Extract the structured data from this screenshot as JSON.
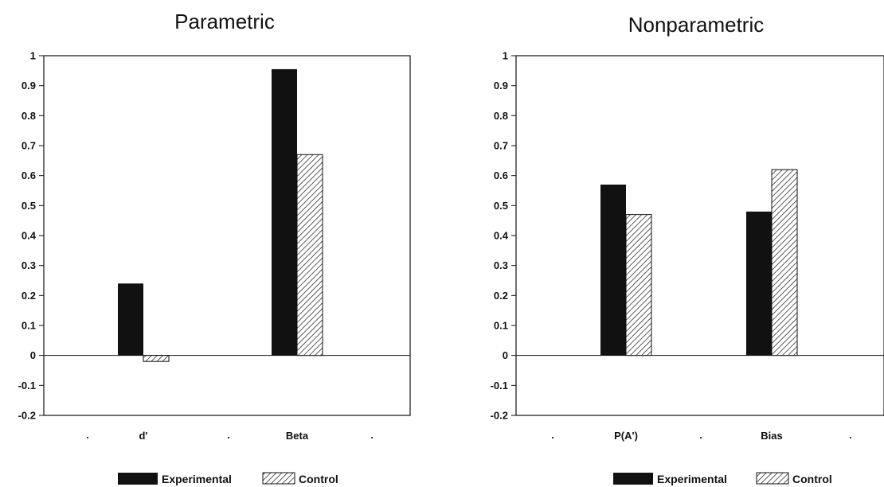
{
  "chart_data": [
    {
      "type": "bar",
      "title": "Parametric",
      "categories": [
        "d'",
        "Beta"
      ],
      "series": [
        {
          "name": "Experimental",
          "values": [
            0.24,
            0.955
          ]
        },
        {
          "name": "Control",
          "values": [
            -0.02,
            0.67
          ]
        }
      ],
      "ylim": [
        -0.2,
        1
      ],
      "yticks": [
        "1",
        "0.9",
        "0.8",
        "0.7",
        "0.6",
        "0.5",
        "0.4",
        "0.3",
        "0.2",
        "0.1",
        "0",
        "-0.1",
        "-0.2"
      ],
      "xlabel": "",
      "ylabel": "",
      "legend": "bottom",
      "grid": false
    },
    {
      "type": "bar",
      "title": "Nonparametric",
      "categories": [
        "P(A')",
        "Bias"
      ],
      "series": [
        {
          "name": "Experimental",
          "values": [
            0.57,
            0.48
          ]
        },
        {
          "name": "Control",
          "values": [
            0.47,
            0.62
          ]
        }
      ],
      "ylim": [
        -0.2,
        1
      ],
      "yticks": [
        "1",
        "0.9",
        "0.8",
        "0.7",
        "0.6",
        "0.5",
        "0.4",
        "0.3",
        "0.2",
        "0.1",
        "0",
        "-0.1",
        "-0.2"
      ],
      "xlabel": "",
      "ylabel": "",
      "legend": "bottom",
      "grid": false
    }
  ],
  "colors": {
    "experimental": "#111111",
    "control_hatch": "#444444",
    "axis": "#111111"
  }
}
